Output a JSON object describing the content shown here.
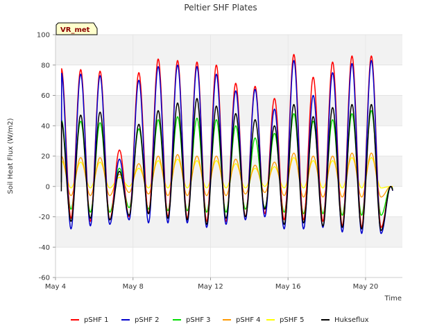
{
  "chart_data": {
    "type": "line",
    "title": "Peltier SHF Plates",
    "xlabel": "Time",
    "ylabel": "Soil Heat Flux (W/m2)",
    "ylim": [
      -60,
      100
    ],
    "yticks": [
      -60,
      -40,
      -20,
      0,
      20,
      40,
      60,
      80,
      100
    ],
    "xlim": [
      4.0,
      21.9
    ],
    "xticks": [
      {
        "value": 4,
        "label": "May 4"
      },
      {
        "value": 8,
        "label": "May 8"
      },
      {
        "value": 12,
        "label": "May 12"
      },
      {
        "value": 16,
        "label": "May 16"
      },
      {
        "value": 20,
        "label": "May 20"
      }
    ],
    "x_unit": "day of May",
    "grid": true,
    "legend_position": "bottom",
    "badge": "VR_met",
    "days": [
      4.3,
      5.3,
      6.3,
      7.3,
      8.3,
      9.3,
      10.3,
      11.3,
      12.3,
      13.3,
      14.3,
      15.3,
      16.3,
      17.3,
      18.3,
      19.3,
      20.3,
      21.3
    ],
    "series": [
      {
        "name": "pSHF 1",
        "color": "#ff0000",
        "peaks": [
          78,
          77,
          76,
          24,
          75,
          84,
          83,
          82,
          80,
          68,
          66,
          58,
          87,
          72,
          82,
          86,
          86,
          0
        ],
        "mins": [
          -21,
          -23,
          -22,
          -20,
          -18,
          -20,
          -21,
          -23,
          -23,
          -20,
          -18,
          -22,
          -22,
          -23,
          -26,
          -27,
          -27,
          -27
        ]
      },
      {
        "name": "pSHF 2",
        "color": "#0000cc",
        "peaks": [
          75,
          74,
          73,
          18,
          70,
          79,
          80,
          79,
          74,
          63,
          64,
          51,
          83,
          60,
          75,
          81,
          83,
          0
        ],
        "mins": [
          -28,
          -26,
          -25,
          -22,
          -24,
          -24,
          -24,
          -27,
          -25,
          -22,
          -20,
          -28,
          -28,
          -27,
          -30,
          -31,
          -31,
          -30
        ]
      },
      {
        "name": "pSHF 3",
        "color": "#00dd00",
        "peaks": [
          44,
          43,
          42,
          12,
          38,
          44,
          46,
          45,
          44,
          40,
          32,
          35,
          48,
          43,
          44,
          48,
          50,
          0
        ],
        "mins": [
          -15,
          -17,
          -17,
          -14,
          -15,
          -16,
          -16,
          -17,
          -17,
          -15,
          -14,
          -17,
          -18,
          -18,
          -19,
          -19,
          -19,
          -16
        ]
      },
      {
        "name": "pSHF 4",
        "color": "#ff9900",
        "peaks": [
          20,
          19,
          19,
          8,
          15,
          20,
          21,
          20,
          20,
          18,
          14,
          16,
          22,
          20,
          20,
          22,
          22,
          0
        ],
        "mins": [
          -6,
          -6,
          -6,
          -4,
          -5,
          -6,
          -6,
          -6,
          -6,
          -5,
          -4,
          -6,
          -7,
          -7,
          -7,
          -7,
          -7,
          -5
        ]
      },
      {
        "name": "pSHF 5",
        "color": "#ffff00",
        "peaks": [
          17,
          16,
          16,
          6,
          12,
          17,
          18,
          17,
          17,
          15,
          12,
          13,
          19,
          17,
          17,
          19,
          19,
          0
        ],
        "mins": [
          -1,
          -1,
          -1,
          0,
          -1,
          -1,
          -1,
          -1,
          -1,
          -1,
          0,
          -1,
          -1,
          -1,
          -1,
          -1,
          -1,
          2
        ]
      },
      {
        "name": "Hukseflux",
        "color": "#000000",
        "peaks": [
          43,
          47,
          49,
          10,
          41,
          50,
          55,
          58,
          53,
          48,
          44,
          40,
          54,
          46,
          52,
          54,
          54,
          0
        ],
        "mins": [
          -23,
          -21,
          -22,
          -19,
          -18,
          -21,
          -22,
          -25,
          -21,
          -20,
          -15,
          -25,
          -24,
          -26,
          -27,
          -28,
          -29,
          -28
        ]
      }
    ]
  }
}
